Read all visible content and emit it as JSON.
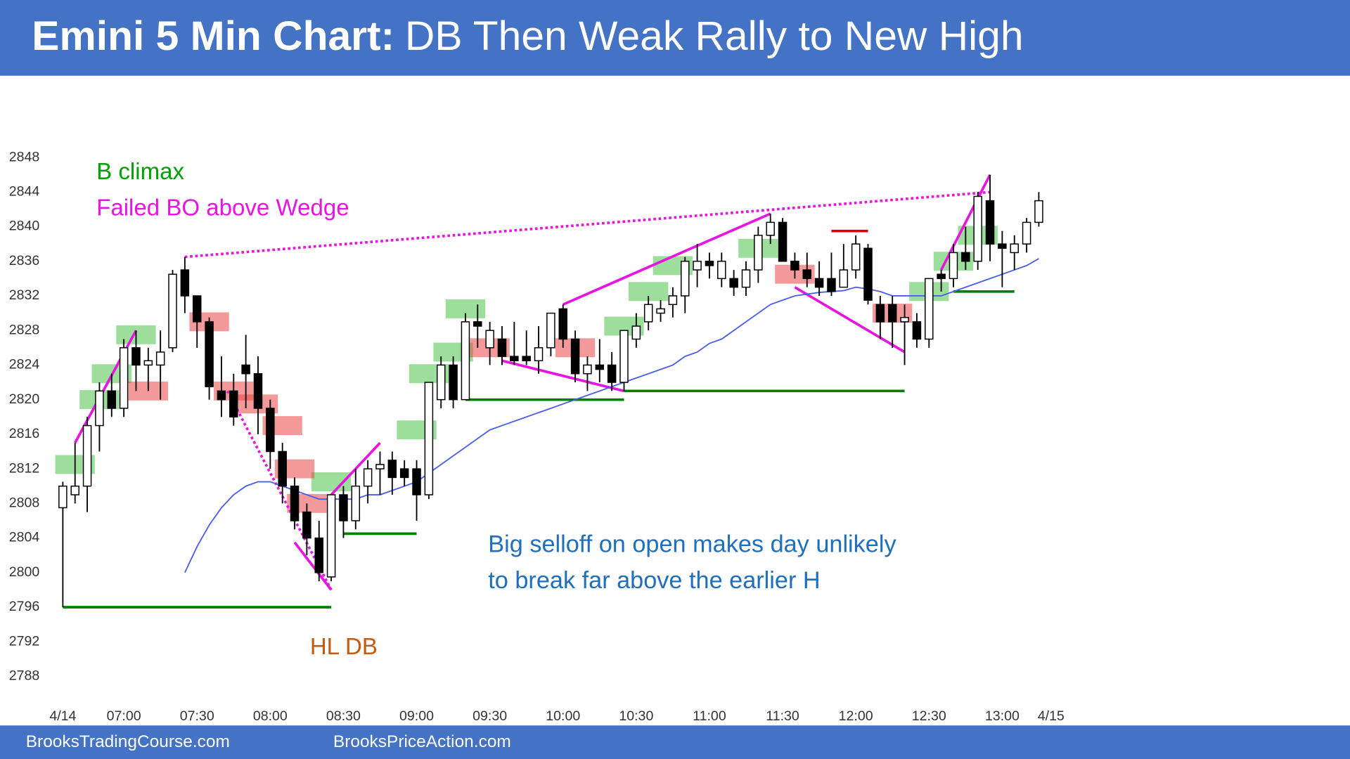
{
  "chart_data": {
    "type": "candlestick",
    "title": "Emini 5 Min Chart:",
    "subtitle": "DB Then Weak Rally to New High",
    "open": [
      2807.5,
      2809,
      2810,
      2817,
      2821,
      2819,
      2826,
      2824,
      2824,
      2826,
      2835,
      2832,
      2829,
      2821,
      2821,
      2824,
      2823,
      2819,
      2814,
      2810,
      2807,
      2804,
      2799.5,
      2809,
      2806,
      2810,
      2812,
      2813,
      2812,
      2812,
      2809,
      2820,
      2824,
      2820,
      2829,
      2826,
      2827,
      2825,
      2825,
      2824.5,
      2826,
      2830.5,
      2827,
      2823,
      2824,
      2824,
      2822,
      2827,
      2829,
      2830,
      2831,
      2832,
      2835,
      2836,
      2834,
      2834,
      2833,
      2835,
      2839,
      2840.5,
      2836,
      2835,
      2834,
      2834,
      2833,
      2835,
      2837.5,
      2831,
      2831,
      2829,
      2829,
      2827,
      2834.5,
      2834,
      2837,
      2836,
      2843,
      2838,
      2837,
      2838,
      2840.5
    ],
    "high": [
      2810.5,
      2815,
      2818,
      2822,
      2823,
      2827,
      2828,
      2826,
      2828,
      2835,
      2836.5,
      2832,
      2829.5,
      2825,
      2823,
      2827.5,
      2825,
      2820,
      2815,
      2811,
      2808,
      2806,
      2809,
      2810,
      2812,
      2813,
      2814,
      2814,
      2813,
      2813,
      2822,
      2825,
      2825,
      2830,
      2831,
      2829,
      2828.5,
      2829,
      2828,
      2828.5,
      2830,
      2831,
      2828,
      2825,
      2827,
      2825.5,
      2828,
      2830,
      2832,
      2831.5,
      2833,
      2836.5,
      2838,
      2837,
      2837,
      2835,
      2836,
      2840,
      2841.5,
      2841,
      2837,
      2837,
      2836,
      2837,
      2838,
      2839,
      2838,
      2832,
      2832,
      2831,
      2830,
      2834,
      2835,
      2838,
      2840,
      2844,
      2846,
      2839.5,
      2839,
      2841,
      2844
    ],
    "low": [
      2796,
      2808,
      2807,
      2814,
      2818,
      2818,
      2821,
      2821,
      2820,
      2825.5,
      2830,
      2826,
      2820,
      2818,
      2817,
      2819,
      2816,
      2812,
      2808,
      2805,
      2802,
      2799,
      2799,
      2804,
      2805,
      2808,
      2809,
      2809,
      2810,
      2806,
      2808.5,
      2819,
      2819,
      2820,
      2826,
      2824,
      2824,
      2824,
      2824,
      2823,
      2825,
      2826,
      2822,
      2821,
      2822,
      2821,
      2821,
      2826,
      2828,
      2829,
      2829.5,
      2830,
      2833,
      2834,
      2833,
      2832,
      2832,
      2833.5,
      2838,
      2836,
      2834,
      2833,
      2832,
      2832,
      2833,
      2834,
      2831,
      2827,
      2826,
      2824,
      2826,
      2826,
      2832.5,
      2833,
      2835,
      2835,
      2836,
      2833,
      2835,
      2837,
      2840
    ],
    "close": [
      2810,
      2810,
      2817,
      2821,
      2819,
      2826,
      2824,
      2824.5,
      2825.5,
      2834.5,
      2832,
      2829,
      2821.5,
      2820,
      2818,
      2823,
      2819,
      2814,
      2810,
      2806,
      2804,
      2800,
      2809,
      2806,
      2810,
      2812,
      2812.5,
      2811,
      2811,
      2809,
      2822,
      2824,
      2820,
      2829,
      2828.5,
      2828,
      2825,
      2824.5,
      2824.5,
      2826,
      2830,
      2827,
      2823,
      2824,
      2823.5,
      2822,
      2828,
      2828.5,
      2831,
      2830.5,
      2832,
      2836,
      2836,
      2835.5,
      2836,
      2833,
      2835,
      2839,
      2840.5,
      2836,
      2835,
      2834,
      2833,
      2832.5,
      2835,
      2838,
      2831.5,
      2829,
      2829,
      2829.5,
      2827,
      2834,
      2834,
      2837,
      2836,
      2843.5,
      2838,
      2837.5,
      2838,
      2840.5,
      2843
    ],
    "up_color": "#ffffff",
    "down_color": "#000000",
    "moving_average": {
      "color": "#4a5ee8",
      "values": [
        null,
        null,
        null,
        null,
        null,
        null,
        null,
        null,
        null,
        null,
        2800,
        2803,
        2805.5,
        2807.5,
        2809,
        2810,
        2810.5,
        2810.5,
        2810,
        2809.5,
        2809,
        2808.5,
        2808.5,
        2808.5,
        2808.5,
        2809,
        2809,
        2809.5,
        2810,
        2810.5,
        2811.5,
        2812.5,
        2813.5,
        2814.5,
        2815.5,
        2816.5,
        2817,
        2817.5,
        2818,
        2818.5,
        2819,
        2819.5,
        2820,
        2820.5,
        2821,
        2821.5,
        2822,
        2822.5,
        2823,
        2823.5,
        2824,
        2825,
        2825.5,
        2826.5,
        2827,
        2828,
        2829,
        2830,
        2831,
        2831.5,
        2832,
        2832.2,
        2832.4,
        2832.5,
        2832.6,
        2833,
        2832.8,
        2832.5,
        2832,
        2832,
        2832,
        2832,
        2832,
        2832.5,
        2833,
        2833.5,
        2834,
        2834.5,
        2835,
        2835.5,
        2836.3
      ]
    },
    "ylim": [
      2784,
      2852
    ],
    "yticks": [
      2788,
      2792,
      2796,
      2800,
      2804,
      2808,
      2812,
      2816,
      2820,
      2824,
      2828,
      2832,
      2836,
      2840,
      2844,
      2848
    ],
    "xlim": [
      -0.5,
      82
    ],
    "xticks": [
      {
        "value": 0,
        "label": "4/14"
      },
      {
        "value": 5,
        "label": "07:00"
      },
      {
        "value": 11,
        "label": "07:30"
      },
      {
        "value": 17,
        "label": "08:00"
      },
      {
        "value": 23,
        "label": "08:30"
      },
      {
        "value": 29,
        "label": "09:00"
      },
      {
        "value": 35,
        "label": "09:30"
      },
      {
        "value": 41,
        "label": "10:00"
      },
      {
        "value": 47,
        "label": "10:30"
      },
      {
        "value": 53,
        "label": "11:00"
      },
      {
        "value": 59,
        "label": "11:30"
      },
      {
        "value": 65,
        "label": "12:00"
      },
      {
        "value": 71,
        "label": "12:30"
      },
      {
        "value": 77,
        "label": "13:00"
      },
      {
        "value": 81,
        "label": "4/15"
      }
    ],
    "annotations": [
      "B climax",
      "Failed BO above Wedge",
      "Big selloff on open makes day unlikely",
      "to break far above the earlier H",
      "HL DB"
    ]
  },
  "footer": [
    "BrooksTradingCourse.com",
    "BrooksPriceAction.com"
  ]
}
